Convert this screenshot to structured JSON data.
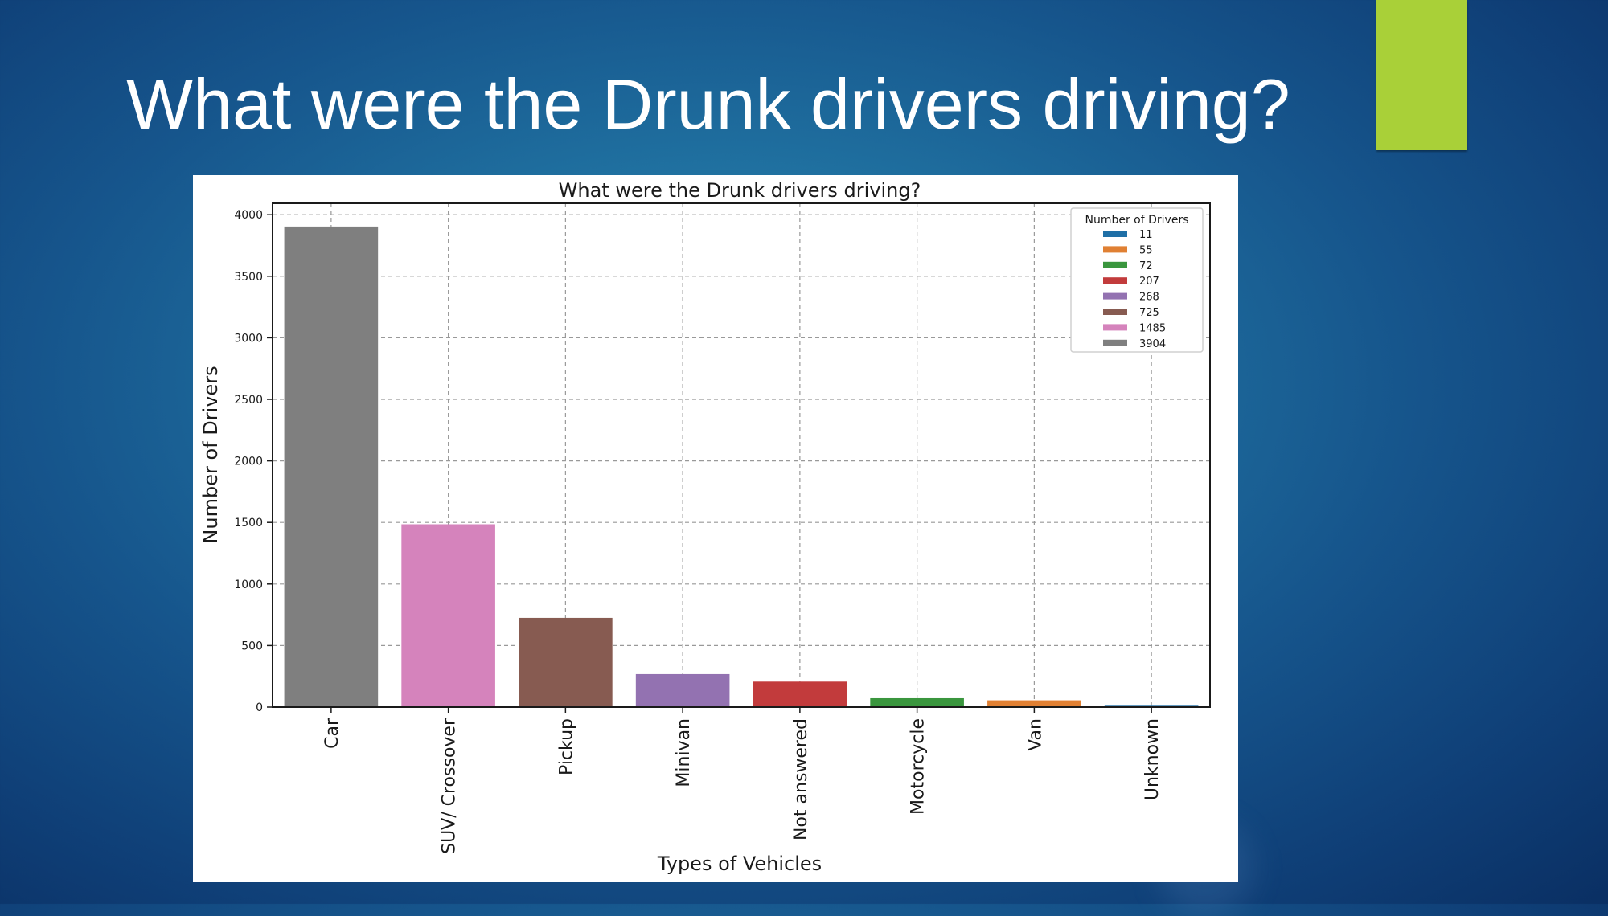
{
  "slide": {
    "title": "What were the Drunk drivers driving?"
  },
  "colors": {
    "background": "#1f6f9f",
    "accent": "#a9d038"
  },
  "chart_data": {
    "type": "bar",
    "title": "What were the Drunk drivers driving?",
    "xlabel": "Types of Vehicles",
    "ylabel": "Number of Drivers",
    "ylim": [
      0,
      4100
    ],
    "yticks": [
      0,
      500,
      1000,
      1500,
      2000,
      2500,
      3000,
      3500,
      4000
    ],
    "grid": true,
    "grid_style": "dashed",
    "categories": [
      "Car",
      "SUV/ Crossover",
      "Pickup",
      "Minivan",
      "Not answered",
      "Motorcycle",
      "Van",
      "Unknown"
    ],
    "values": [
      3904,
      1485,
      725,
      268,
      207,
      72,
      55,
      11
    ],
    "bar_colors": [
      "#7f7f7f",
      "#d583bc",
      "#875b51",
      "#9372b1",
      "#c23b3c",
      "#3a963e",
      "#e08033",
      "#1f6fa6"
    ],
    "legend": {
      "title": "Number of Drivers",
      "placement": "top-right",
      "entries": [
        {
          "label": "11",
          "color": "#1f6fa6"
        },
        {
          "label": "55",
          "color": "#e08033"
        },
        {
          "label": "72",
          "color": "#3a963e"
        },
        {
          "label": "207",
          "color": "#c23b3c"
        },
        {
          "label": "268",
          "color": "#9372b1"
        },
        {
          "label": "725",
          "color": "#875b51"
        },
        {
          "label": "1485",
          "color": "#d583bc"
        },
        {
          "label": "3904",
          "color": "#7f7f7f"
        }
      ]
    }
  }
}
